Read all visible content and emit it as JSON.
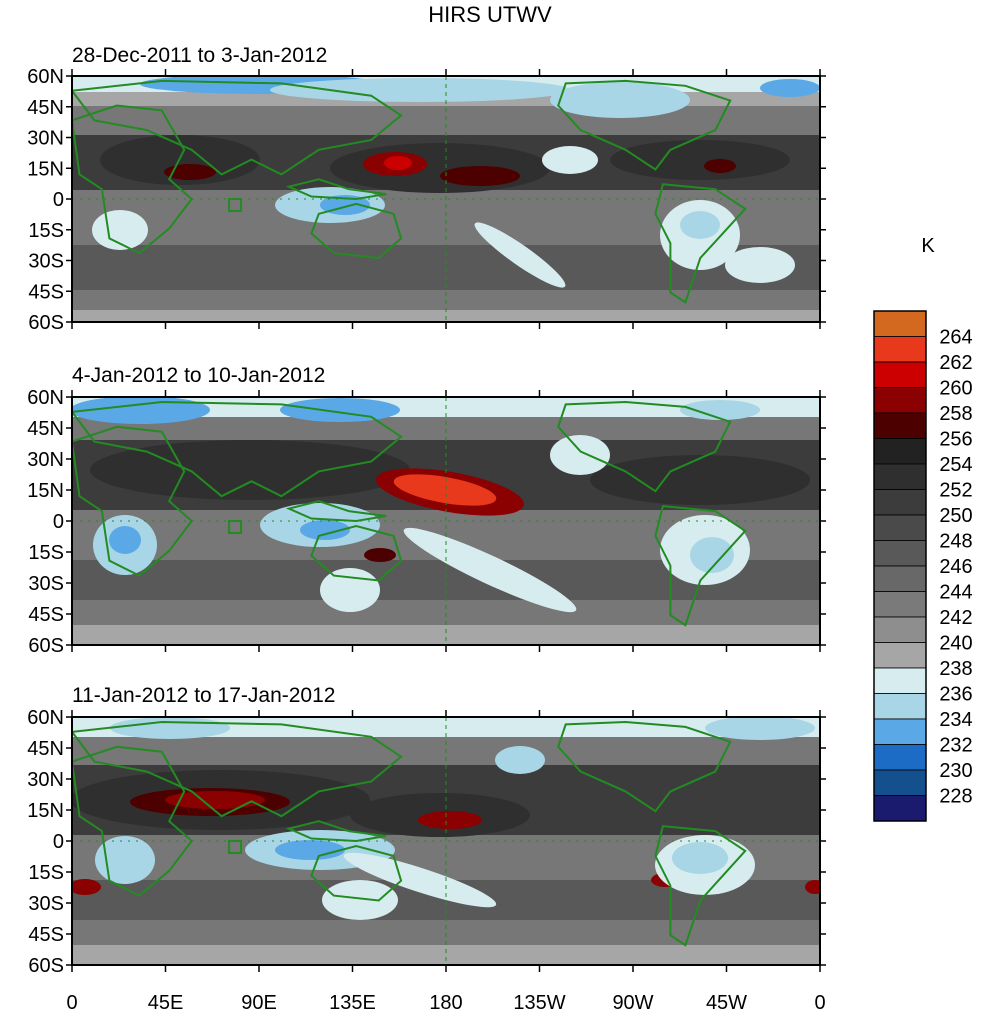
{
  "title": "HIRS UTWV",
  "unit": "K",
  "panels": [
    {
      "title": "28-Dec-2011 to 3-Jan-2012"
    },
    {
      "title": "4-Jan-2012 to 10-Jan-2012"
    },
    {
      "title": "11-Jan-2012 to 17-Jan-2012"
    }
  ],
  "lat_ticks": [
    "60N",
    "45N",
    "30N",
    "15N",
    "0",
    "15S",
    "30S",
    "45S",
    "60S"
  ],
  "lon_ticks": [
    "0",
    "45E",
    "90E",
    "135E",
    "180",
    "135W",
    "90W",
    "45W",
    "0"
  ],
  "colorbar": {
    "levels": [
      "264",
      "262",
      "260",
      "258",
      "256",
      "254",
      "252",
      "250",
      "248",
      "246",
      "244",
      "242",
      "240",
      "238",
      "236",
      "234",
      "232",
      "230",
      "228"
    ],
    "colors": [
      "#d2691e",
      "#e8391c",
      "#cc0000",
      "#8b0000",
      "#4d0000",
      "#222222",
      "#2f2f2f",
      "#3c3c3c",
      "#4a4a4a",
      "#595959",
      "#686868",
      "#7a7a7a",
      "#8e8e8e",
      "#a6a6a6",
      "#d7ecee",
      "#a9d6e6",
      "#5aa9e6",
      "#1c6cc6",
      "#14508e",
      "#1a1a6e"
    ]
  },
  "colors": {
    "coastline": "#228b22",
    "frame": "#000000"
  }
}
